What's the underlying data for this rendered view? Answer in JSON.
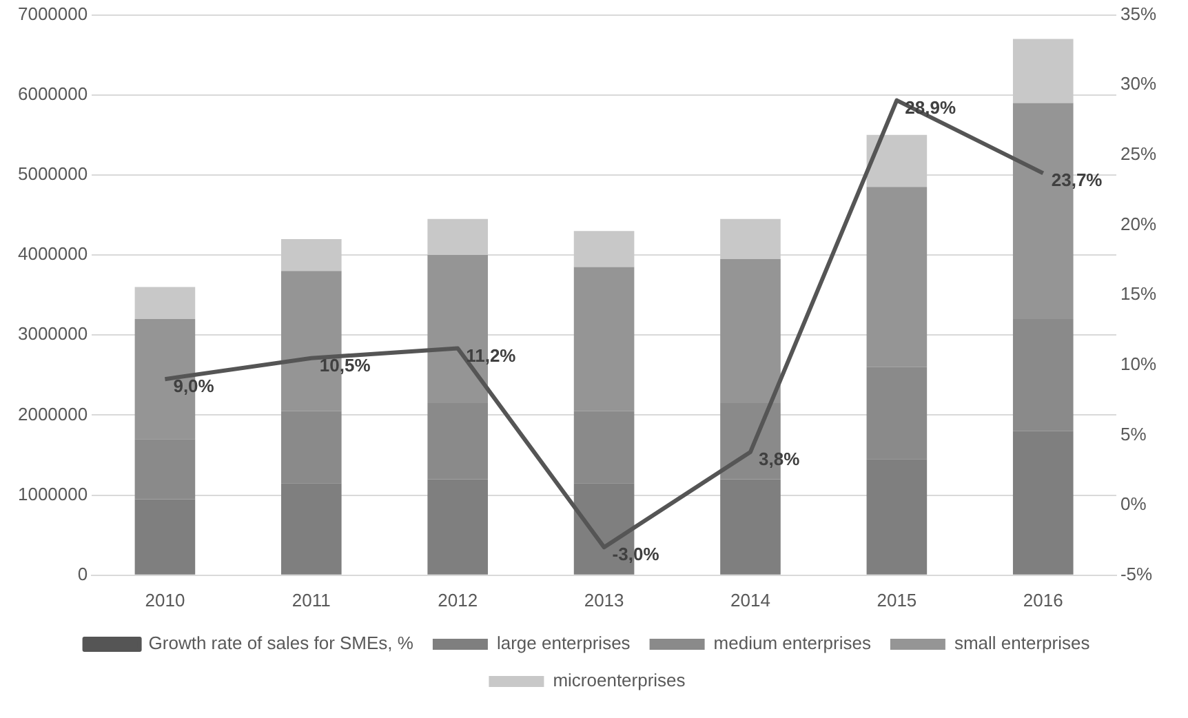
{
  "chart_data": {
    "type": "bar",
    "stacked": true,
    "categories": [
      "2010",
      "2011",
      "2012",
      "2013",
      "2014",
      "2015",
      "2016"
    ],
    "series": [
      {
        "name": "large enterprises",
        "color": "#7f7f7f",
        "values": [
          950000,
          1150000,
          1200000,
          1150000,
          1200000,
          1450000,
          1800000
        ]
      },
      {
        "name": "medium enterprises",
        "color": "#8a8a8a",
        "values": [
          750000,
          900000,
          950000,
          900000,
          950000,
          1150000,
          1400000
        ]
      },
      {
        "name": "small enterprises",
        "color": "#959595",
        "values": [
          1500000,
          1750000,
          1850000,
          1800000,
          1800000,
          2250000,
          2700000
        ]
      },
      {
        "name": "microenterprises",
        "color": "#c8c8c8",
        "values": [
          400000,
          400000,
          450000,
          450000,
          500000,
          650000,
          800000
        ]
      },
      {
        "name": "Growth rate of sales for SMEs, %",
        "type": "line",
        "axis": "y2",
        "color": "#555555",
        "values": [
          9.0,
          10.5,
          11.2,
          -3.0,
          3.8,
          28.9,
          23.7
        ],
        "value_labels": [
          "9,0%",
          "10,5%",
          "11,2%",
          "-3,0%",
          "3,8%",
          "28,9%",
          "23,7%"
        ]
      }
    ],
    "ylim": [
      0,
      7000000
    ],
    "yticks": [
      0,
      1000000,
      2000000,
      3000000,
      4000000,
      5000000,
      6000000,
      7000000
    ],
    "y2lim": [
      -5,
      35
    ],
    "y2ticks": [
      {
        "value": -5,
        "label": "-5%"
      },
      {
        "value": 0,
        "label": "0%"
      },
      {
        "value": 5,
        "label": "5%"
      },
      {
        "value": 10,
        "label": "10%"
      },
      {
        "value": 15,
        "label": "15%"
      },
      {
        "value": 20,
        "label": "20%"
      },
      {
        "value": 25,
        "label": "25%"
      },
      {
        "value": 30,
        "label": "30%"
      },
      {
        "value": 35,
        "label": "35%"
      }
    ],
    "grid": "y",
    "legend": "bottom",
    "marker": "none",
    "line_style": "solid"
  }
}
